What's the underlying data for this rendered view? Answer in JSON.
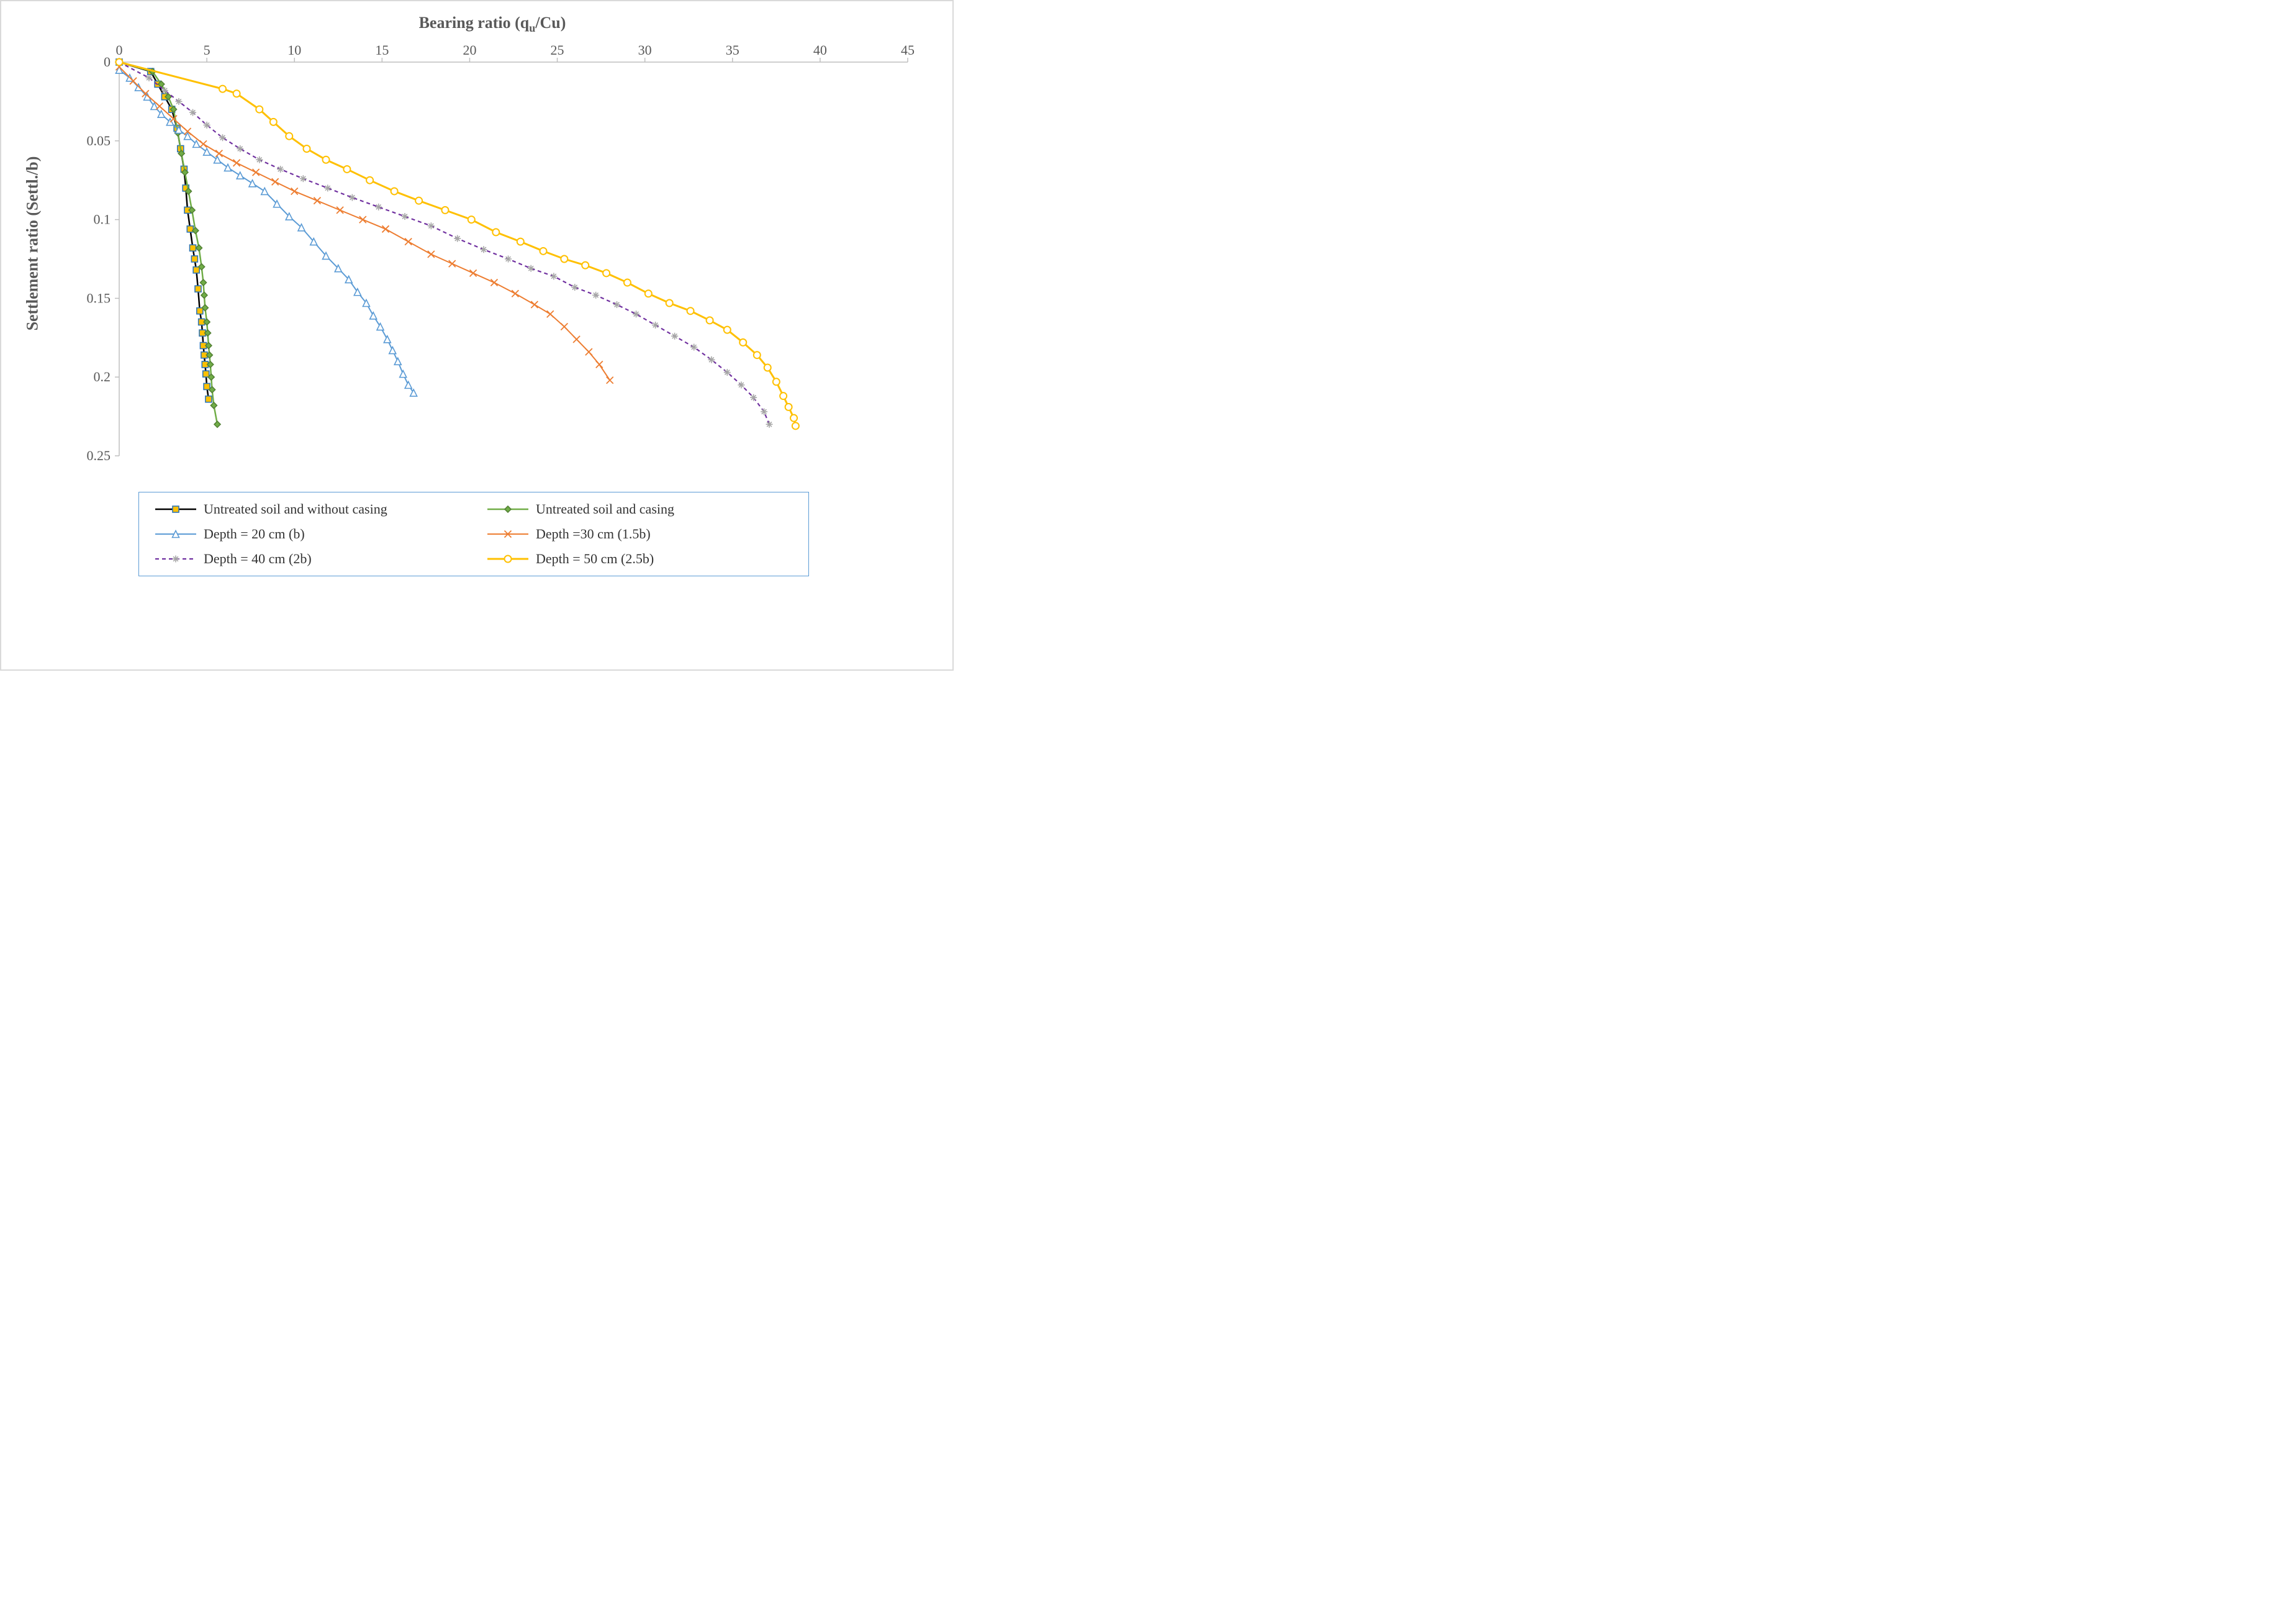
{
  "chart": {
    "type": "line-scatter",
    "x_axis": {
      "label_html": "Bearing ratio (q<sub>u</sub>/Cu)",
      "min": 0,
      "max": 45,
      "tick_step": 5,
      "position": "top",
      "axis_color": "#bfbfbf",
      "tick_fontsize": 22,
      "label_fontsize": 26,
      "label_color": "#595959"
    },
    "y_axis": {
      "label": "Settlement ratio (Settl./b)",
      "min": 0,
      "max": 0.25,
      "tick_step": 0.05,
      "reversed": true,
      "axis_color": "#bfbfbf",
      "tick_fontsize": 22,
      "label_fontsize": 26,
      "label_color": "#595959"
    },
    "background_color": "#ffffff",
    "border_color": "#d9d9d9",
    "grid": false,
    "legend": {
      "border_color": "#5b9bd5",
      "position": "bottom",
      "columns": 2
    },
    "series": [
      {
        "id": "untreated_no_casing",
        "label": "Untreated soil and without casing",
        "line_color": "#000000",
        "line_width": 2.5,
        "marker": "square",
        "marker_fill": "#ffc000",
        "marker_stroke": "#2e75b6",
        "marker_size": 10,
        "data": [
          [
            0.0,
            0.0
          ],
          [
            1.8,
            0.006
          ],
          [
            2.2,
            0.014
          ],
          [
            2.6,
            0.022
          ],
          [
            3.0,
            0.03
          ],
          [
            3.3,
            0.042
          ],
          [
            3.5,
            0.055
          ],
          [
            3.7,
            0.068
          ],
          [
            3.8,
            0.08
          ],
          [
            3.9,
            0.094
          ],
          [
            4.05,
            0.106
          ],
          [
            4.2,
            0.118
          ],
          [
            4.3,
            0.125
          ],
          [
            4.4,
            0.132
          ],
          [
            4.5,
            0.144
          ],
          [
            4.6,
            0.158
          ],
          [
            4.7,
            0.165
          ],
          [
            4.75,
            0.172
          ],
          [
            4.8,
            0.18
          ],
          [
            4.85,
            0.186
          ],
          [
            4.9,
            0.192
          ],
          [
            4.95,
            0.198
          ],
          [
            5.0,
            0.206
          ],
          [
            5.1,
            0.214
          ]
        ]
      },
      {
        "id": "untreated_casing",
        "label": "Untreated soil and  casing",
        "line_color": "#70ad47",
        "line_width": 2.5,
        "marker": "diamond",
        "marker_fill": "#70ad47",
        "marker_stroke": "#548235",
        "marker_size": 10,
        "data": [
          [
            0.0,
            0.0
          ],
          [
            1.9,
            0.006
          ],
          [
            2.4,
            0.014
          ],
          [
            2.8,
            0.022
          ],
          [
            3.1,
            0.03
          ],
          [
            3.35,
            0.045
          ],
          [
            3.55,
            0.058
          ],
          [
            3.75,
            0.07
          ],
          [
            3.95,
            0.082
          ],
          [
            4.15,
            0.094
          ],
          [
            4.35,
            0.107
          ],
          [
            4.55,
            0.118
          ],
          [
            4.7,
            0.13
          ],
          [
            4.8,
            0.14
          ],
          [
            4.85,
            0.148
          ],
          [
            4.9,
            0.156
          ],
          [
            5.0,
            0.165
          ],
          [
            5.05,
            0.172
          ],
          [
            5.1,
            0.18
          ],
          [
            5.15,
            0.186
          ],
          [
            5.2,
            0.192
          ],
          [
            5.25,
            0.2
          ],
          [
            5.3,
            0.208
          ],
          [
            5.4,
            0.218
          ],
          [
            5.6,
            0.23
          ]
        ]
      },
      {
        "id": "depth20",
        "label": "Depth = 20 cm (b)",
        "line_color": "#5b9bd5",
        "line_width": 2,
        "marker": "triangle",
        "marker_fill": "#ffffff",
        "marker_stroke": "#5b9bd5",
        "marker_size": 11,
        "data": [
          [
            0.0,
            0.005
          ],
          [
            0.6,
            0.01
          ],
          [
            1.1,
            0.016
          ],
          [
            1.6,
            0.022
          ],
          [
            2.0,
            0.028
          ],
          [
            2.4,
            0.033
          ],
          [
            2.9,
            0.038
          ],
          [
            3.4,
            0.043
          ],
          [
            3.9,
            0.047
          ],
          [
            4.4,
            0.052
          ],
          [
            5.0,
            0.057
          ],
          [
            5.6,
            0.062
          ],
          [
            6.2,
            0.067
          ],
          [
            6.9,
            0.072
          ],
          [
            7.6,
            0.077
          ],
          [
            8.3,
            0.082
          ],
          [
            9.0,
            0.09
          ],
          [
            9.7,
            0.098
          ],
          [
            10.4,
            0.105
          ],
          [
            11.1,
            0.114
          ],
          [
            11.8,
            0.123
          ],
          [
            12.5,
            0.131
          ],
          [
            13.1,
            0.138
          ],
          [
            13.6,
            0.146
          ],
          [
            14.1,
            0.153
          ],
          [
            14.5,
            0.161
          ],
          [
            14.9,
            0.168
          ],
          [
            15.3,
            0.176
          ],
          [
            15.6,
            0.183
          ],
          [
            15.9,
            0.19
          ],
          [
            16.2,
            0.198
          ],
          [
            16.5,
            0.205
          ],
          [
            16.8,
            0.21
          ]
        ]
      },
      {
        "id": "depth30",
        "label": "Depth =30 cm (1.5b)",
        "line_color": "#ed7d31",
        "line_width": 2,
        "marker": "x",
        "marker_fill": "none",
        "marker_stroke": "#ed7d31",
        "marker_size": 11,
        "data": [
          [
            0.0,
            0.003
          ],
          [
            0.8,
            0.012
          ],
          [
            1.5,
            0.02
          ],
          [
            2.3,
            0.028
          ],
          [
            3.1,
            0.036
          ],
          [
            3.9,
            0.044
          ],
          [
            4.8,
            0.052
          ],
          [
            5.7,
            0.058
          ],
          [
            6.7,
            0.064
          ],
          [
            7.8,
            0.07
          ],
          [
            8.9,
            0.076
          ],
          [
            10.0,
            0.082
          ],
          [
            11.3,
            0.088
          ],
          [
            12.6,
            0.094
          ],
          [
            13.9,
            0.1
          ],
          [
            15.2,
            0.106
          ],
          [
            16.5,
            0.114
          ],
          [
            17.8,
            0.122
          ],
          [
            19.0,
            0.128
          ],
          [
            20.2,
            0.134
          ],
          [
            21.4,
            0.14
          ],
          [
            22.6,
            0.147
          ],
          [
            23.7,
            0.154
          ],
          [
            24.6,
            0.16
          ],
          [
            25.4,
            0.168
          ],
          [
            26.1,
            0.176
          ],
          [
            26.8,
            0.184
          ],
          [
            27.4,
            0.192
          ],
          [
            28.0,
            0.202
          ]
        ]
      },
      {
        "id": "depth40",
        "label": "Depth = 40 cm (2b)",
        "line_color": "#7030a0",
        "line_width": 2.2,
        "line_dash": "6,5",
        "marker": "asterisk",
        "marker_fill": "none",
        "marker_stroke": "#a6a6a6",
        "marker_size": 11,
        "data": [
          [
            0.0,
            0.0
          ],
          [
            1.7,
            0.01
          ],
          [
            2.6,
            0.018
          ],
          [
            3.4,
            0.025
          ],
          [
            4.2,
            0.032
          ],
          [
            5.0,
            0.04
          ],
          [
            5.9,
            0.048
          ],
          [
            6.9,
            0.055
          ],
          [
            8.0,
            0.062
          ],
          [
            9.2,
            0.068
          ],
          [
            10.5,
            0.074
          ],
          [
            11.9,
            0.08
          ],
          [
            13.3,
            0.086
          ],
          [
            14.8,
            0.092
          ],
          [
            16.3,
            0.098
          ],
          [
            17.8,
            0.104
          ],
          [
            19.3,
            0.112
          ],
          [
            20.8,
            0.119
          ],
          [
            22.2,
            0.125
          ],
          [
            23.5,
            0.131
          ],
          [
            24.8,
            0.136
          ],
          [
            26.0,
            0.143
          ],
          [
            27.2,
            0.148
          ],
          [
            28.4,
            0.154
          ],
          [
            29.5,
            0.16
          ],
          [
            30.6,
            0.167
          ],
          [
            31.7,
            0.174
          ],
          [
            32.8,
            0.181
          ],
          [
            33.8,
            0.189
          ],
          [
            34.7,
            0.197
          ],
          [
            35.5,
            0.205
          ],
          [
            36.2,
            0.213
          ],
          [
            36.8,
            0.222
          ],
          [
            37.1,
            0.23
          ]
        ]
      },
      {
        "id": "depth50",
        "label": "Depth = 50 cm (2.5b)",
        "line_color": "#ffc000",
        "line_width": 3,
        "marker": "circle",
        "marker_fill": "#ffffff",
        "marker_stroke": "#ffc000",
        "marker_size": 11,
        "data": [
          [
            0.0,
            0.0
          ],
          [
            5.9,
            0.017
          ],
          [
            6.7,
            0.02
          ],
          [
            8.0,
            0.03
          ],
          [
            8.8,
            0.038
          ],
          [
            9.7,
            0.047
          ],
          [
            10.7,
            0.055
          ],
          [
            11.8,
            0.062
          ],
          [
            13.0,
            0.068
          ],
          [
            14.3,
            0.075
          ],
          [
            15.7,
            0.082
          ],
          [
            17.1,
            0.088
          ],
          [
            18.6,
            0.094
          ],
          [
            20.1,
            0.1
          ],
          [
            21.5,
            0.108
          ],
          [
            22.9,
            0.114
          ],
          [
            24.2,
            0.12
          ],
          [
            25.4,
            0.125
          ],
          [
            26.6,
            0.129
          ],
          [
            27.8,
            0.134
          ],
          [
            29.0,
            0.14
          ],
          [
            30.2,
            0.147
          ],
          [
            31.4,
            0.153
          ],
          [
            32.6,
            0.158
          ],
          [
            33.7,
            0.164
          ],
          [
            34.7,
            0.17
          ],
          [
            35.6,
            0.178
          ],
          [
            36.4,
            0.186
          ],
          [
            37.0,
            0.194
          ],
          [
            37.5,
            0.203
          ],
          [
            37.9,
            0.212
          ],
          [
            38.2,
            0.219
          ],
          [
            38.5,
            0.226
          ],
          [
            38.6,
            0.231
          ]
        ]
      }
    ]
  }
}
